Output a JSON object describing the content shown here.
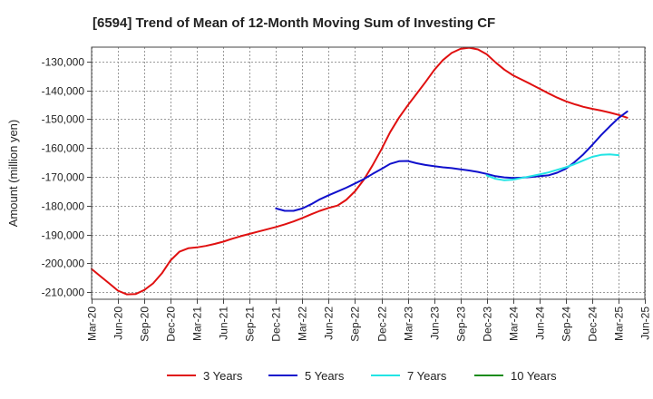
{
  "chart_data": {
    "type": "line",
    "title": "[6594]  Trend of Mean of 12-Month Moving Sum of Investing CF",
    "xlabel": "",
    "ylabel": "Amount (million yen)",
    "grid": true,
    "legend_position": "bottom",
    "x_ticks": [
      "Mar-20",
      "Jun-20",
      "Sep-20",
      "Dec-20",
      "Mar-21",
      "Jun-21",
      "Sep-21",
      "Dec-21",
      "Mar-22",
      "Jun-22",
      "Sep-22",
      "Dec-22",
      "Mar-23",
      "Jun-23",
      "Sep-23",
      "Dec-23",
      "Mar-24",
      "Jun-24",
      "Sep-24",
      "Dec-24",
      "Mar-25",
      "Jun-25"
    ],
    "x_tick_index": [
      0,
      3,
      6,
      9,
      12,
      15,
      18,
      21,
      24,
      27,
      30,
      33,
      36,
      39,
      42,
      45,
      48,
      51,
      54,
      57,
      60,
      63
    ],
    "xlim": [
      0,
      63
    ],
    "y_ticks": [
      -210000,
      -200000,
      -190000,
      -180000,
      -170000,
      -160000,
      -150000,
      -140000,
      -130000
    ],
    "y_tick_labels": [
      "-210,000",
      "-200,000",
      "-190,000",
      "-180,000",
      "-170,000",
      "-160,000",
      "-150,000",
      "-140,000",
      "-130,000"
    ],
    "ylim": [
      -212500,
      -125000
    ],
    "series": [
      {
        "name": "3 Years",
        "color": "#e01010",
        "start_index": 0,
        "values": [
          -202000,
          -204500,
          -207000,
          -209500,
          -210800,
          -210700,
          -209300,
          -207000,
          -203500,
          -199000,
          -196000,
          -194800,
          -194500,
          -194000,
          -193300,
          -192500,
          -191500,
          -190600,
          -189800,
          -189000,
          -188200,
          -187400,
          -186500,
          -185500,
          -184300,
          -183000,
          -181800,
          -180800,
          -180000,
          -178000,
          -175000,
          -171000,
          -166000,
          -160500,
          -154500,
          -149500,
          -145200,
          -141200,
          -137200,
          -133000,
          -129500,
          -127000,
          -125600,
          -125200,
          -125800,
          -127500,
          -130300,
          -132800,
          -134800,
          -136300,
          -137800,
          -139400,
          -141000,
          -142500,
          -143800,
          -144800,
          -145700,
          -146400,
          -147000,
          -147700,
          -148500,
          -149500
        ]
      },
      {
        "name": "5 Years",
        "color": "#1010cc",
        "start_index": 21,
        "values": [
          -181000,
          -181800,
          -181800,
          -181000,
          -179500,
          -177800,
          -176400,
          -175100,
          -173800,
          -172300,
          -170800,
          -169000,
          -167300,
          -165500,
          -164600,
          -164500,
          -165300,
          -165900,
          -166300,
          -166700,
          -167000,
          -167400,
          -167800,
          -168300,
          -169000,
          -169800,
          -170200,
          -170400,
          -170300,
          -170100,
          -169800,
          -169500,
          -168600,
          -167200,
          -164900,
          -162200,
          -159000,
          -155600,
          -152500,
          -149600,
          -147300
        ]
      },
      {
        "name": "7 Years",
        "color": "#22e4e4",
        "start_index": 45,
        "values": [
          -169500,
          -170700,
          -171200,
          -171000,
          -170400,
          -169800,
          -169200,
          -168500,
          -167600,
          -166700,
          -165600,
          -164300,
          -163100,
          -162400,
          -162200,
          -162500
        ]
      },
      {
        "name": "10 Years",
        "color": "#1a8c1a",
        "start_index": 0,
        "values": []
      }
    ]
  }
}
